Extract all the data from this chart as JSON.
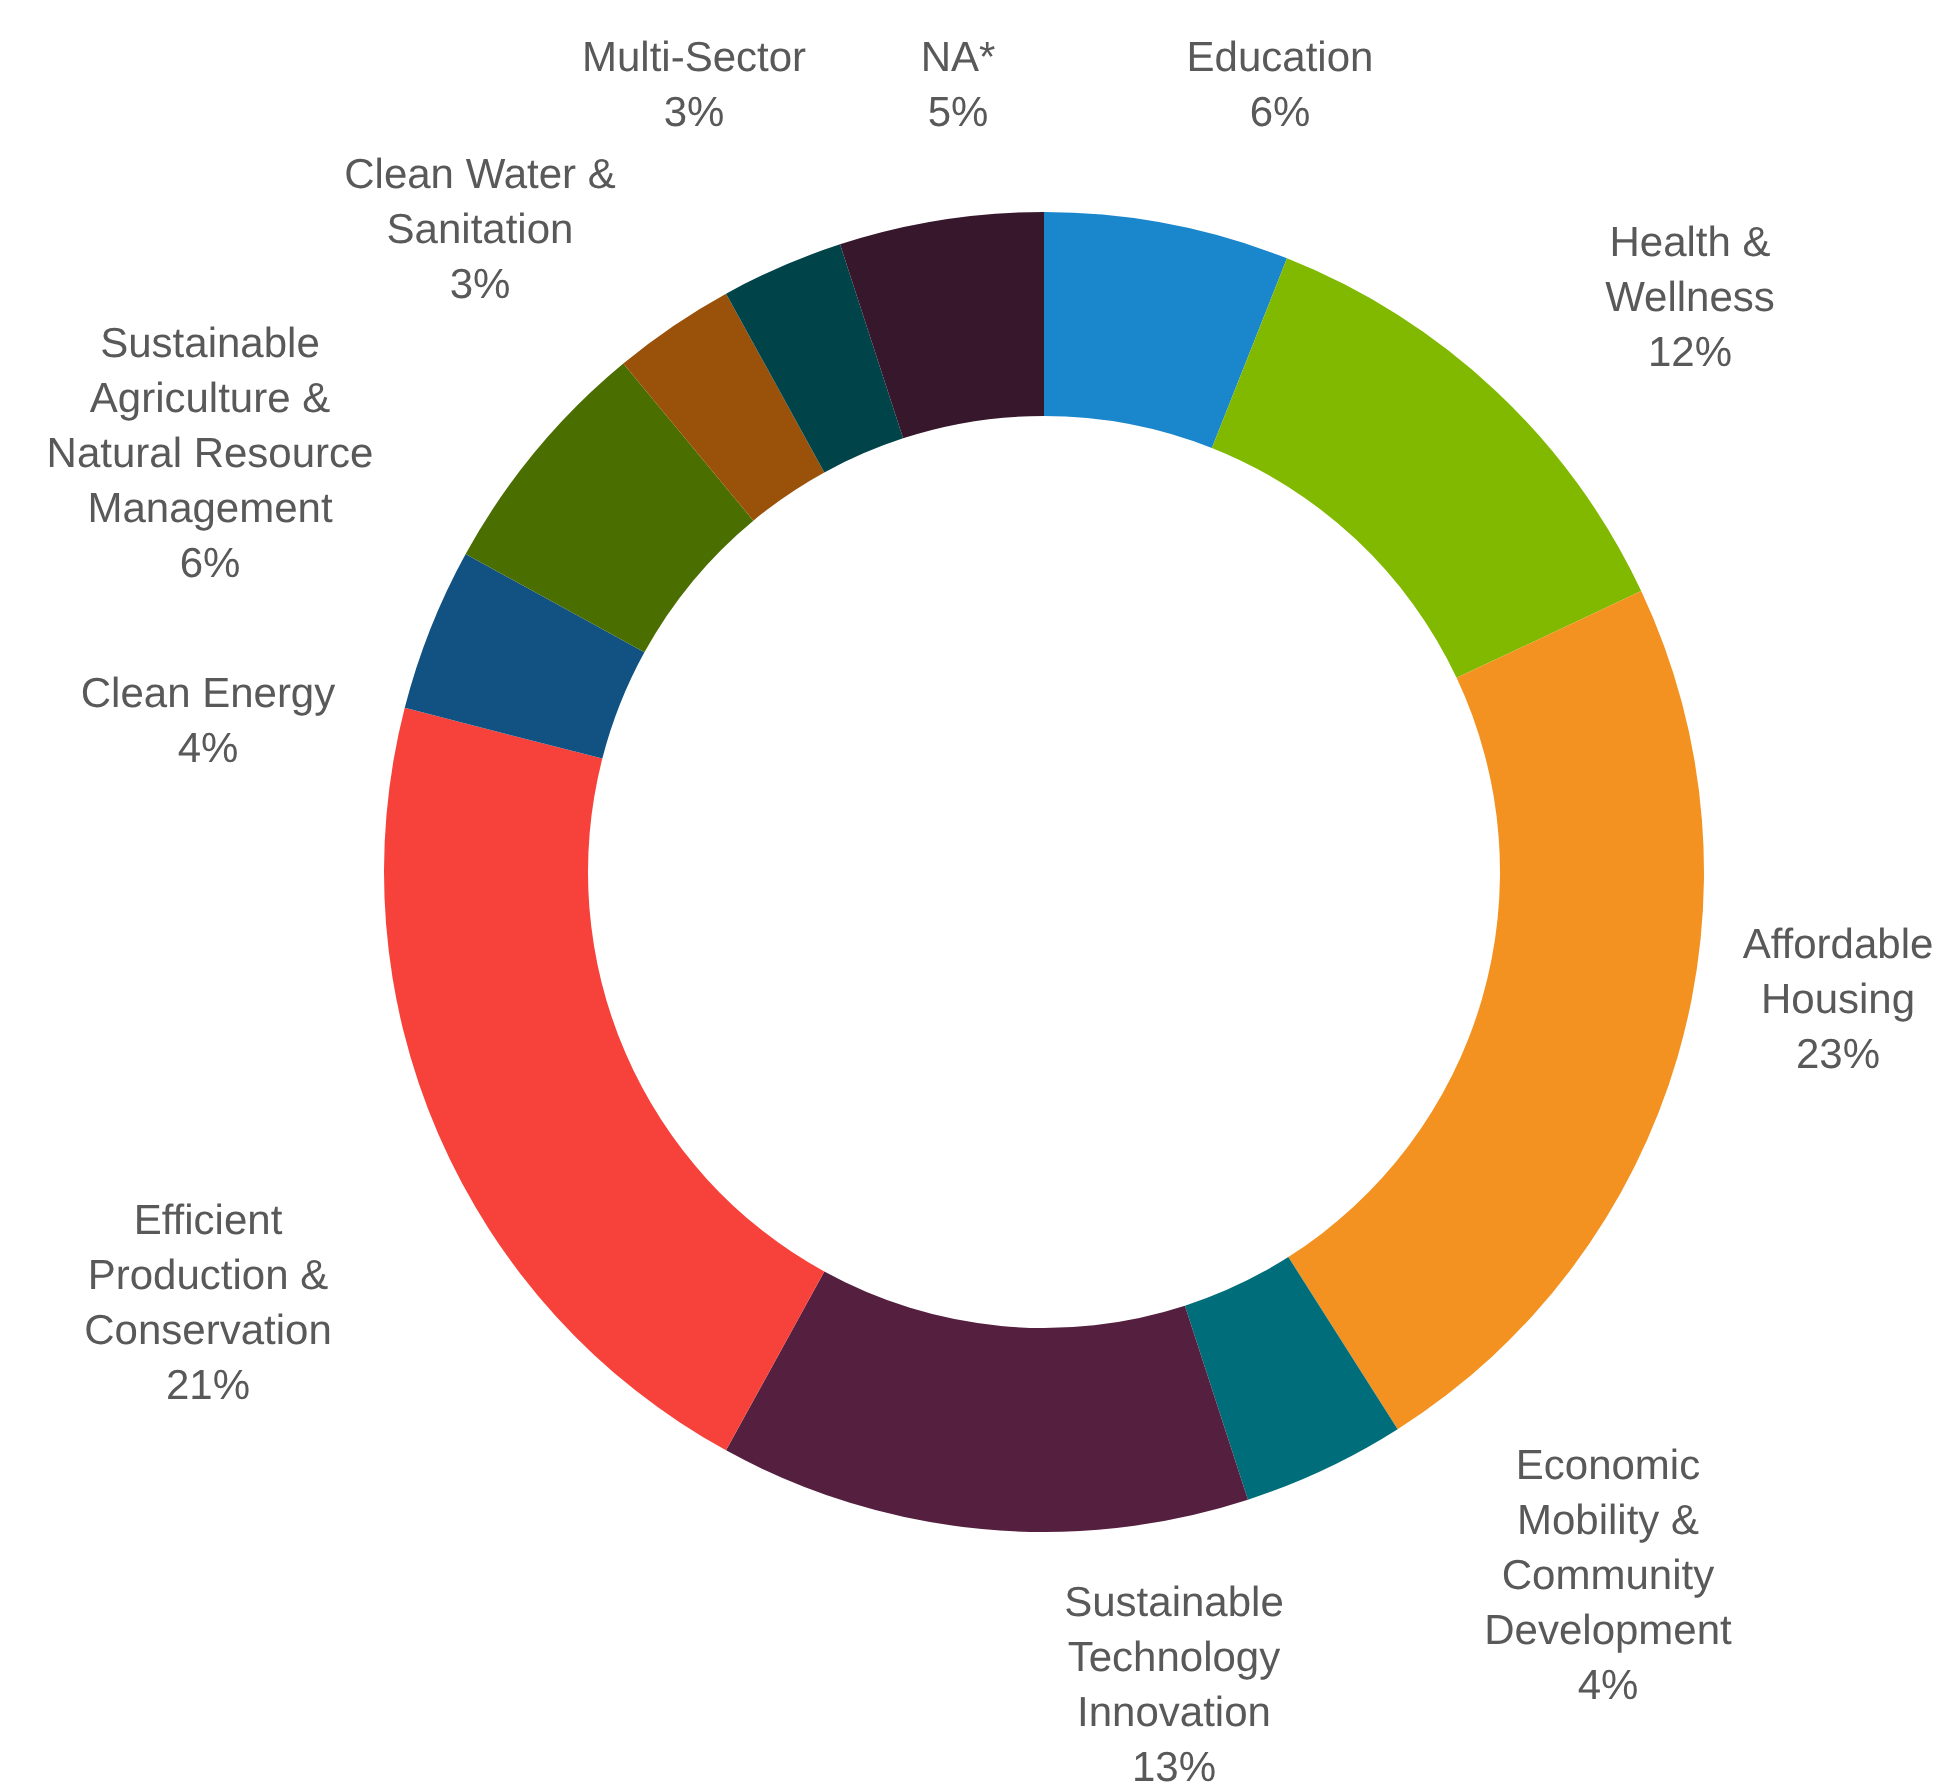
{
  "chart_data": {
    "type": "donut",
    "categories": [
      "Education",
      "Health & Wellness",
      "Affordable Housing",
      "Economic Mobility & Community Development",
      "Sustainable Technology Innovation",
      "Efficient Production & Conservation",
      "Clean Energy",
      "Sustainable Agriculture & Natural Resource Management",
      "Clean Water & Sanitation",
      "Multi-Sector",
      "NA*"
    ],
    "values": [
      6,
      12,
      23,
      4,
      13,
      21,
      4,
      6,
      3,
      3,
      5
    ],
    "colors": [
      "#1a86cc",
      "#80b900",
      "#f39220",
      "#006e7a",
      "#55203f",
      "#f7423b",
      "#125282",
      "#4a6e00",
      "#9a520a",
      "#00444a",
      "#36172c"
    ],
    "value_labels": [
      "6%",
      "12%",
      "23%",
      "4%",
      "13%",
      "21%",
      "4%",
      "6%",
      "3%",
      "3%",
      "5%"
    ]
  }
}
